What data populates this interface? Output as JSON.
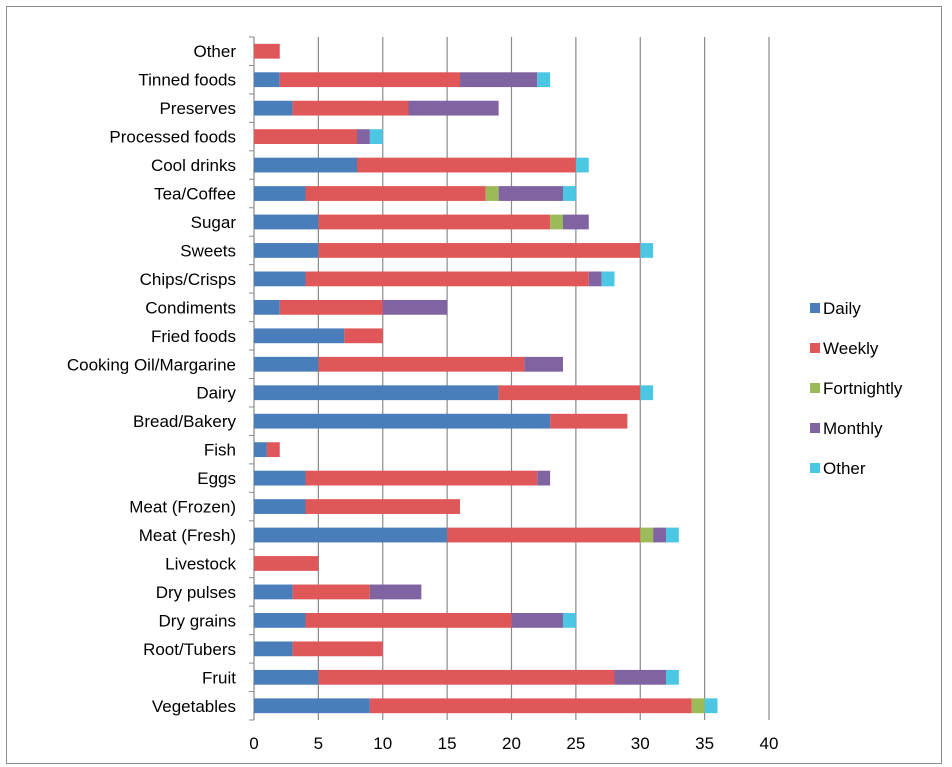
{
  "chart_data": {
    "type": "bar",
    "orientation": "horizontal",
    "stacked": true,
    "title": "",
    "xlabel": "",
    "ylabel": "",
    "xlim": [
      0,
      40
    ],
    "x_ticks": [
      0,
      5,
      10,
      15,
      20,
      25,
      30,
      35,
      40
    ],
    "grid": "vertical major gridlines",
    "legend_position": "right",
    "categories": [
      "Vegetables",
      "Fruit",
      "Root/Tubers",
      "Dry grains",
      "Dry pulses",
      "Livestock",
      "Meat (Fresh)",
      "Meat (Frozen)",
      "Eggs",
      "Fish",
      "Bread/Bakery",
      "Dairy",
      "Cooking Oil/Margarine",
      "Fried foods",
      "Condiments",
      "Chips/Crisps",
      "Sweets",
      "Sugar",
      "Tea/Coffee",
      "Cool drinks",
      "Processed foods",
      "Preserves",
      "Tinned foods",
      "Other"
    ],
    "series": [
      {
        "name": "Daily",
        "color": "#4a7ebb",
        "values": [
          9,
          5,
          3,
          4,
          3,
          0,
          15,
          4,
          4,
          1,
          23,
          19,
          5,
          7,
          2,
          4,
          5,
          5,
          4,
          8,
          0,
          3,
          2,
          0
        ]
      },
      {
        "name": "Weekly",
        "color": "#e0575a",
        "values": [
          25,
          23,
          7,
          16,
          6,
          5,
          15,
          12,
          18,
          1,
          6,
          11,
          16,
          3,
          8,
          22,
          25,
          18,
          14,
          17,
          8,
          9,
          14,
          2
        ]
      },
      {
        "name": "Fortnightly",
        "color": "#9bbb59",
        "values": [
          1,
          0,
          0,
          0,
          0,
          0,
          1,
          0,
          0,
          0,
          0,
          0,
          0,
          0,
          0,
          0,
          0,
          1,
          1,
          0,
          0,
          0,
          0,
          0
        ]
      },
      {
        "name": "Monthly",
        "color": "#8064a2",
        "values": [
          0,
          4,
          0,
          4,
          4,
          0,
          1,
          0,
          1,
          0,
          0,
          0,
          3,
          0,
          5,
          1,
          0,
          2,
          5,
          0,
          1,
          7,
          6,
          0
        ]
      },
      {
        "name": "Other",
        "color": "#4bc6e3",
        "values": [
          1,
          1,
          0,
          1,
          0,
          0,
          1,
          0,
          0,
          0,
          0,
          1,
          0,
          0,
          0,
          1,
          1,
          0,
          1,
          1,
          1,
          0,
          1,
          0
        ]
      }
    ]
  }
}
